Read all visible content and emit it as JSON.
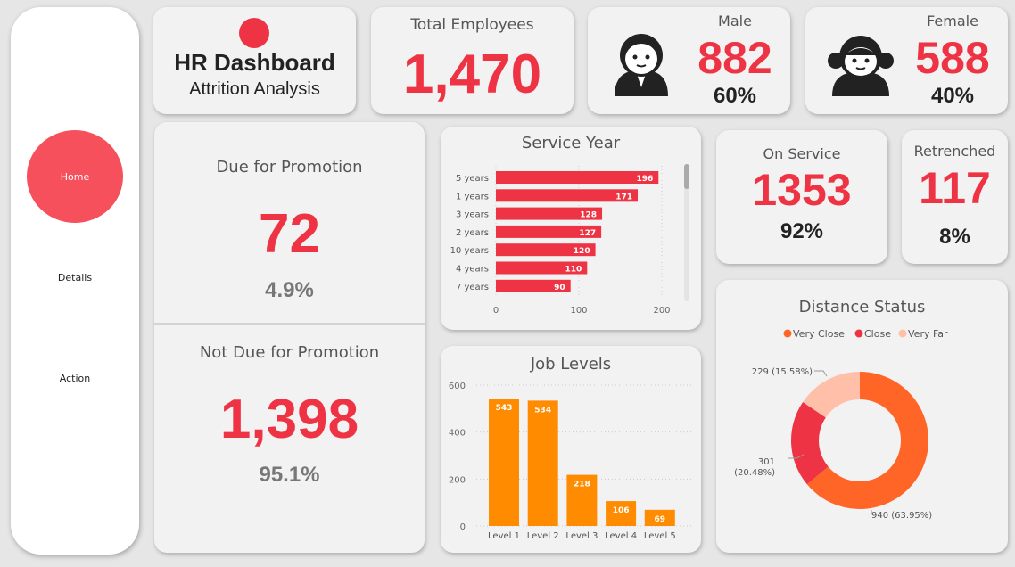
{
  "nav": {
    "items": [
      {
        "label": "Home",
        "active": true
      },
      {
        "label": "Details"
      },
      {
        "label": "Action"
      }
    ]
  },
  "header": {
    "title": "HR Dashboard",
    "subtitle": "Attrition Analysis"
  },
  "total": {
    "label": "Total Employees",
    "value": "1,470"
  },
  "male": {
    "label": "Male",
    "value": "882",
    "pct": "60%",
    "icon": "male-avatar-icon"
  },
  "female": {
    "label": "Female",
    "value": "588",
    "pct": "40%",
    "icon": "female-avatar-icon"
  },
  "promotion": {
    "due_label": "Due for Promotion",
    "due_value": "72",
    "due_pct": "4.9%",
    "not_label": "Not Due for Promotion",
    "not_value": "1,398",
    "not_pct": "95.1%"
  },
  "on_service": {
    "label": "On Service",
    "value": "1353",
    "pct": "92%"
  },
  "retrenched": {
    "label": "Retrenched",
    "value": "117",
    "pct": "8%"
  },
  "colors": {
    "accent": "#ee3444",
    "orange": "#ff8c00",
    "very_close": "#ff6526",
    "close": "#ee3444",
    "very_far": "#ffbfa8",
    "home": "#f5505c"
  },
  "chart_data": [
    {
      "type": "bar",
      "orientation": "horizontal",
      "title": "Service Year",
      "categories": [
        "5 years",
        "1 years",
        "3 years",
        "2 years",
        "10 years",
        "4 years",
        "7 years"
      ],
      "values": [
        196,
        171,
        128,
        127,
        120,
        110,
        90
      ],
      "xlim": [
        0,
        200
      ],
      "ticks": [
        "0",
        "100",
        "200"
      ],
      "grid": true
    },
    {
      "type": "bar",
      "title": "Job Levels",
      "categories": [
        "Level 1",
        "Level 2",
        "Level 3",
        "Level 4",
        "Level 5"
      ],
      "values": [
        543,
        534,
        218,
        106,
        69
      ],
      "ylim": [
        0,
        600
      ],
      "ticks": [
        "0",
        "200",
        "400",
        "600"
      ],
      "grid": true
    },
    {
      "type": "pie",
      "donut": true,
      "title": "Distance Status",
      "legend": "top",
      "categories": [
        "Very Close",
        "Close",
        "Very Far"
      ],
      "values": [
        940,
        301,
        229
      ],
      "labels": [
        "940 (63.95%)",
        "301 (20.48%)",
        "229 (15.58%)"
      ]
    }
  ]
}
